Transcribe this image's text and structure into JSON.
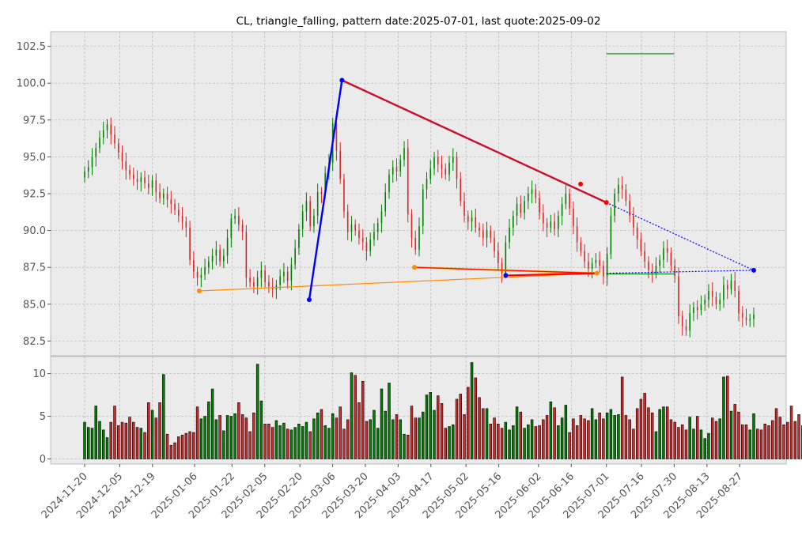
{
  "title": "CL, triangle_falling, pattern date:2025-07-01, last quote:2025-09-02",
  "colors": {
    "up": "#008000",
    "down": "#d62728",
    "bar_outline": "#000000",
    "grid": "#b0b0b0",
    "panel_bg": "#ebebeb",
    "upper_trend": "#c8102e",
    "lower_trend_orange": "#ff8c00",
    "lower_trend_red": "#ff0000",
    "blue": "#0000ff",
    "target_green": "#008000"
  },
  "chart_data": [
    {
      "type": "candlestick",
      "ylim": [
        81.5,
        103.5
      ],
      "yticks": [
        82.5,
        85.0,
        87.5,
        90.0,
        92.5,
        95.0,
        97.5,
        100.0,
        102.5
      ],
      "xticks": [
        "2024-11-20",
        "2024-12-05",
        "2024-12-19",
        "2025-01-06",
        "2025-01-22",
        "2025-02-05",
        "2025-02-20",
        "2025-03-06",
        "2025-03-20",
        "2025-04-03",
        "2025-04-17",
        "2025-05-02",
        "2025-05-16",
        "2025-06-02",
        "2025-06-16",
        "2025-07-01",
        "2025-07-16",
        "2025-07-30",
        "2025-08-13",
        "2025-08-27"
      ],
      "grid": true,
      "series_close": [
        94.0,
        94.3,
        95.0,
        95.6,
        96.3,
        96.8,
        97.2,
        96.5,
        95.9,
        95.3,
        94.7,
        94.1,
        93.8,
        93.5,
        93.3,
        93.6,
        93.2,
        92.9,
        93.4,
        92.6,
        92.2,
        92.5,
        92.1,
        91.8,
        91.4,
        91.0,
        90.6,
        90.2,
        88.0,
        87.2,
        86.8,
        87.0,
        87.5,
        87.9,
        88.3,
        88.7,
        87.9,
        88.3,
        89.5,
        90.8,
        91.0,
        90.4,
        89.9,
        86.8,
        86.5,
        86.2,
        86.8,
        87.3,
        86.5,
        86.2,
        86.0,
        86.3,
        86.9,
        87.2,
        86.6,
        87.7,
        88.8,
        90.1,
        91.3,
        92.0,
        90.3,
        91.0,
        92.6,
        92.5,
        93.9,
        94.6,
        97.3,
        95.4,
        93.5,
        91.3,
        89.9,
        90.4,
        90.0,
        89.5,
        89.2,
        88.6,
        89.4,
        89.9,
        90.5,
        91.3,
        92.6,
        93.8,
        94.3,
        94.0,
        94.8,
        95.6,
        91.1,
        89.5,
        88.7,
        90.3,
        92.8,
        93.5,
        94.2,
        95.0,
        94.5,
        94.2,
        93.8,
        94.6,
        95.0,
        93.5,
        92.0,
        91.0,
        90.6,
        90.9,
        90.2,
        90.0,
        89.5,
        90.0,
        89.5,
        88.6,
        87.8,
        87.1,
        89.2,
        90.2,
        91.0,
        91.8,
        91.2,
        92.0,
        92.5,
        92.8,
        92.2,
        91.2,
        90.5,
        90.2,
        90.6,
        90.1,
        91.0,
        91.8,
        92.5,
        91.5,
        90.3,
        89.2,
        88.6,
        87.9,
        87.4,
        87.8,
        88.0,
        87.6,
        86.9,
        88.4,
        91.0,
        92.5,
        93.1,
        92.8,
        92.0,
        91.0,
        90.2,
        89.4,
        88.6,
        87.9,
        87.3,
        87.1,
        87.6,
        88.0,
        88.8,
        88.5,
        87.6,
        86.9,
        84.2,
        83.5,
        83.2,
        84.4,
        84.8,
        84.6,
        85.0,
        85.3,
        85.9,
        85.5,
        85.0,
        85.3,
        86.3,
        86.0,
        86.6,
        85.9,
        84.4,
        84.1,
        83.9,
        84.0,
        84.3
      ],
      "indicators": {
        "upper_trendline": {
          "from": [
            "2025-03-10",
            100.2
          ],
          "to": [
            "2025-07-01",
            91.9
          ],
          "projected_to": [
            "2025-09-02",
            87.3
          ]
        },
        "lower_trendline_orange": {
          "from": [
            "2025-01-08",
            85.9
          ],
          "to": [
            "2025-06-27",
            87.1
          ]
        },
        "lower_trendline_recent": {
          "from": [
            "2025-04-10",
            87.5
          ],
          "to": [
            "2025-06-27",
            87.1
          ]
        },
        "lower_trendline_red": {
          "from": [
            "2025-05-19",
            86.95
          ],
          "to": [
            "2025-06-27",
            87.1
          ]
        },
        "blue_leg": {
          "from": [
            "2025-02-24",
            85.3
          ],
          "to": [
            "2025-03-10",
            100.2
          ]
        },
        "blue_projection": {
          "from": [
            "2025-07-01",
            87.1
          ],
          "to": [
            "2025-09-02",
            87.3
          ]
        },
        "target_line_upper": {
          "from": [
            "2025-07-01",
            102.0
          ],
          "to": [
            "2025-07-30",
            102.0
          ]
        },
        "target_line_lower": {
          "from": [
            "2025-07-01",
            87.05
          ],
          "to": [
            "2025-07-30",
            87.05
          ]
        }
      }
    },
    {
      "type": "bar",
      "ylim": [
        -0.6,
        12.0
      ],
      "yticks": [
        0,
        5,
        10
      ],
      "grid": true,
      "values": [
        4.3,
        3.7,
        3.6,
        6.2,
        4.4,
        3.4,
        2.5,
        4.3,
        6.2,
        3.9,
        4.3,
        4.2,
        4.9,
        4.3,
        3.7,
        3.6,
        3.1,
        6.6,
        5.7,
        4.8,
        6.6,
        9.9,
        2.9,
        1.6,
        1.9,
        2.6,
        2.8,
        3.0,
        3.2,
        3.1,
        6.1,
        4.7,
        5.0,
        6.7,
        8.2,
        4.6,
        5.1,
        3.3,
        5.1,
        5.0,
        5.3,
        6.6,
        5.2,
        4.8,
        3.2,
        5.4,
        11.1,
        6.8,
        4.1,
        4.1,
        3.7,
        4.5,
        3.9,
        4.2,
        3.5,
        3.4,
        3.7,
        4.1,
        3.8,
        4.3,
        3.2,
        4.7,
        5.4,
        5.8,
        3.9,
        3.6,
        5.3,
        4.8,
        6.1,
        3.5,
        4.6,
        10.1,
        9.8,
        6.6,
        9.1,
        4.4,
        4.6,
        5.7,
        3.6,
        8.2,
        5.6,
        8.9,
        4.6,
        5.2,
        4.6,
        2.9,
        2.8,
        6.2,
        4.8,
        4.8,
        5.5,
        7.5,
        7.8,
        5.7,
        7.4,
        6.5,
        3.6,
        3.8,
        4.0,
        7.0,
        7.6,
        5.2,
        8.4,
        11.3,
        9.5,
        7.2,
        5.9,
        5.9,
        4.1,
        4.8,
        4.1,
        3.6,
        4.3,
        3.4,
        3.9,
        6.1,
        5.5,
        3.6,
        4.0,
        4.6,
        3.8,
        3.9,
        4.6,
        5.1,
        6.7,
        6.0,
        3.9,
        4.8,
        6.3,
        3.1,
        4.7,
        3.9,
        5.1,
        4.7,
        4.5,
        5.9,
        4.6,
        5.4,
        4.7,
        5.4,
        5.8,
        5.1,
        5.2,
        9.6,
        5.1,
        4.6,
        3.5,
        5.9,
        7.0,
        7.7,
        6.0,
        5.4,
        3.2,
        5.8,
        6.1,
        6.1,
        4.6,
        4.3,
        3.7,
        4.0,
        3.4,
        4.9,
        3.5,
        5.0,
        3.4,
        2.4,
        3.0,
        4.8,
        4.4,
        4.7,
        9.6,
        9.7,
        5.6,
        6.4,
        5.5,
        4.0,
        4.0,
        3.4,
        5.3,
        3.5,
        3.4,
        4.1,
        3.9,
        4.5,
        5.9,
        4.9,
        4.0,
        4.3,
        6.2,
        4.4,
        5.2,
        3.9,
        0.5
      ]
    }
  ]
}
